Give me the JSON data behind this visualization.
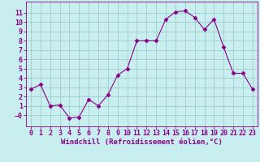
{
  "x": [
    0,
    1,
    2,
    3,
    4,
    5,
    6,
    7,
    8,
    9,
    10,
    11,
    12,
    13,
    14,
    15,
    16,
    17,
    18,
    19,
    20,
    21,
    22,
    23
  ],
  "y": [
    2.8,
    3.3,
    1.0,
    1.1,
    -0.3,
    -0.2,
    1.7,
    1.0,
    2.2,
    4.3,
    5.0,
    8.0,
    8.0,
    8.0,
    10.3,
    11.1,
    11.2,
    10.5,
    9.2,
    10.3,
    7.3,
    4.5,
    4.5,
    2.8
  ],
  "line_color": "#880088",
  "marker": "D",
  "markersize": 2.5,
  "bg_color": "#c8eef0",
  "grid_color": "#a0cccc",
  "xlabel": "Windchill (Refroidissement éolien,°C)",
  "xlabel_fontsize": 6.5,
  "tick_fontsize": 6.0,
  "xlim": [
    -0.5,
    23.5
  ],
  "ylim": [
    -1.2,
    12.2
  ],
  "yticks": [
    0,
    1,
    2,
    3,
    4,
    5,
    6,
    7,
    8,
    9,
    10,
    11
  ],
  "xticks": [
    0,
    1,
    2,
    3,
    4,
    5,
    6,
    7,
    8,
    9,
    10,
    11,
    12,
    13,
    14,
    15,
    16,
    17,
    18,
    19,
    20,
    21,
    22,
    23
  ]
}
